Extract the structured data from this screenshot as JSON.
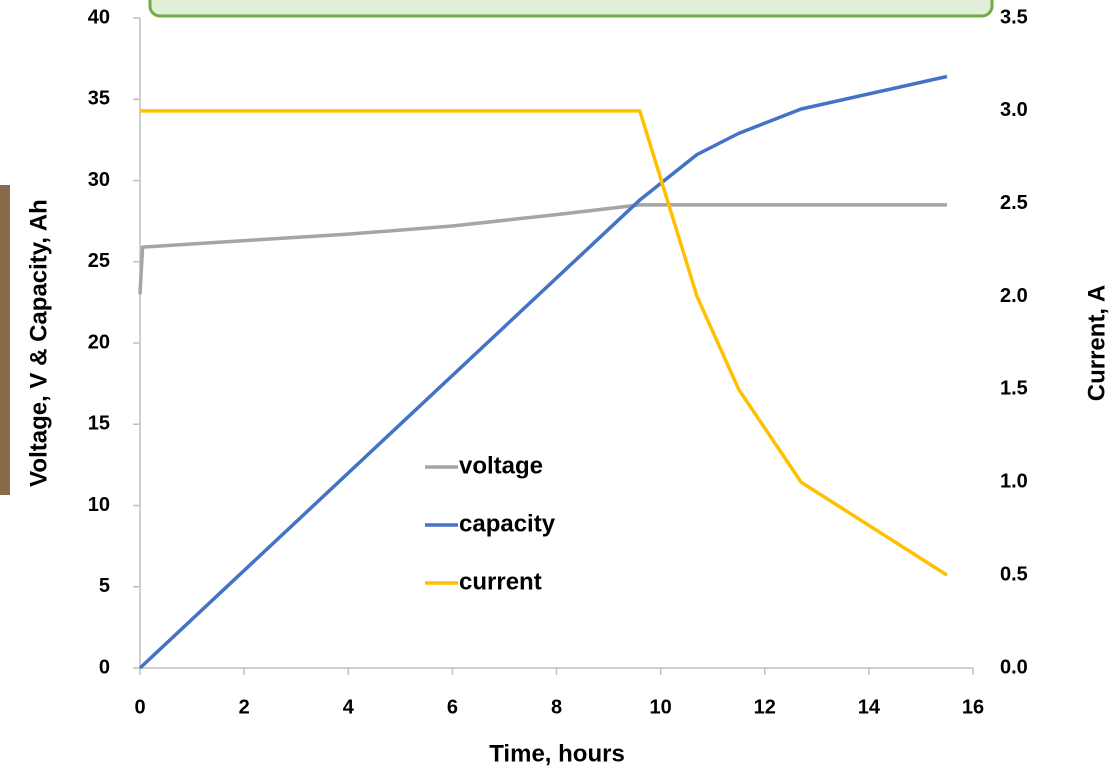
{
  "chart_data": {
    "type": "line",
    "xlabel": "Time, hours",
    "ylabel": "Voltage, V & Capacity, Ah",
    "y2label": "Current, A",
    "xlim": [
      0,
      16
    ],
    "xticks": [
      0,
      2,
      4,
      6,
      8,
      10,
      12,
      14,
      16
    ],
    "ylim": [
      0,
      40
    ],
    "yticks": [
      0,
      5,
      10,
      15,
      20,
      25,
      30,
      35,
      40
    ],
    "y2lim": [
      0,
      3.5
    ],
    "y2ticks": [
      {
        "value": 0,
        "label": "0.0"
      },
      0.5,
      {
        "value": 1,
        "label": "1.0"
      },
      1.5,
      {
        "value": 2,
        "label": "2.0"
      },
      2.5,
      {
        "value": 3,
        "label": "3.0"
      },
      3.5
    ],
    "series": [
      {
        "name": "voltage",
        "color": "#a5a5a5",
        "x": [
          0,
          0.05,
          2,
          4,
          6,
          8,
          9.6,
          15.5
        ],
        "values": [
          23,
          25.9,
          26.3,
          26.7,
          27.2,
          27.9,
          28.5,
          28.5
        ]
      },
      {
        "name": "capacity",
        "color": "#4472c4",
        "x": [
          0,
          9.6,
          10.7,
          11.5,
          12.7,
          15.5
        ],
        "values": [
          0,
          28.8,
          31.6,
          32.9,
          34.4,
          36.4
        ]
      },
      {
        "name": "current",
        "color": "#ffc000",
        "axis": "y2",
        "x": [
          0,
          9.6,
          10.7,
          11.5,
          12.7,
          15.5
        ],
        "values": [
          3.0,
          3.0,
          2.0,
          1.5,
          1.0,
          0.5
        ]
      }
    ]
  }
}
